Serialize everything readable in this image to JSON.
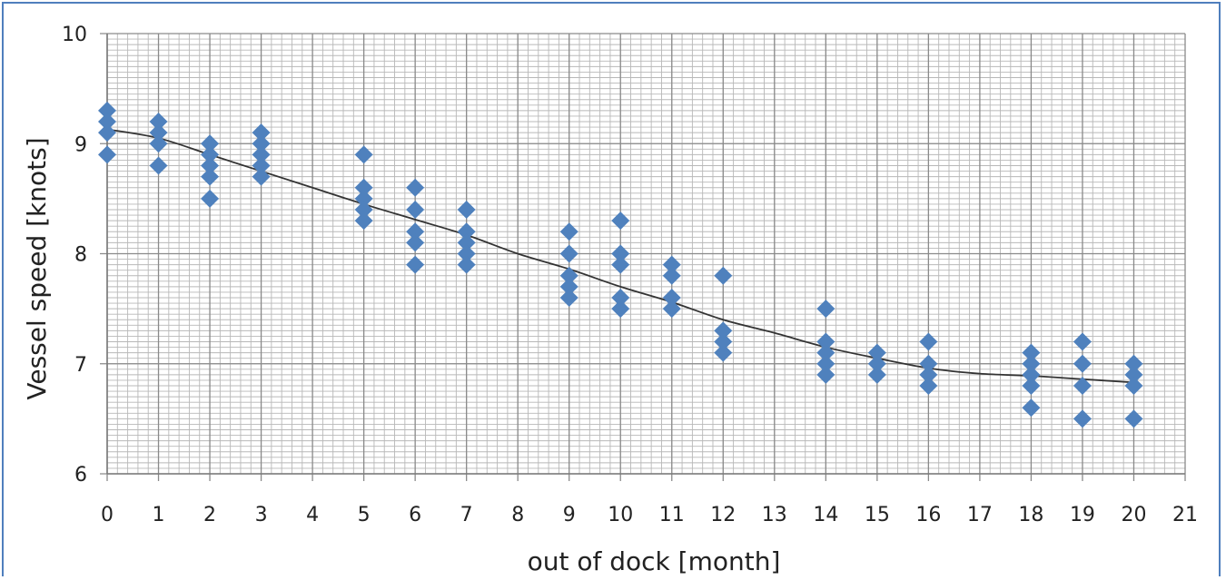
{
  "chart_data": {
    "type": "scatter",
    "xlabel": "out of dock [month]",
    "ylabel": "Vessel speed [knots]",
    "xlim": [
      0,
      21
    ],
    "ylim": [
      6,
      10
    ],
    "x_ticks": [
      0,
      1,
      2,
      3,
      4,
      5,
      6,
      7,
      8,
      9,
      10,
      11,
      12,
      13,
      14,
      15,
      16,
      17,
      18,
      19,
      20,
      21
    ],
    "y_ticks": [
      6,
      7,
      8,
      9,
      10
    ],
    "grid": true,
    "minor_grid": true,
    "marker": "diamond",
    "marker_color": "#4f81bd",
    "points": [
      [
        0,
        9.3
      ],
      [
        0,
        9.2
      ],
      [
        0,
        9.1
      ],
      [
        0,
        8.9
      ],
      [
        1,
        9.2
      ],
      [
        1,
        9.1
      ],
      [
        1,
        9.0
      ],
      [
        1,
        8.8
      ],
      [
        2,
        9.0
      ],
      [
        2,
        8.9
      ],
      [
        2,
        8.8
      ],
      [
        2,
        8.7
      ],
      [
        2,
        8.5
      ],
      [
        3,
        9.1
      ],
      [
        3,
        9.0
      ],
      [
        3,
        8.9
      ],
      [
        3,
        8.8
      ],
      [
        3,
        8.7
      ],
      [
        5,
        8.9
      ],
      [
        5,
        8.6
      ],
      [
        5,
        8.5
      ],
      [
        5,
        8.4
      ],
      [
        5,
        8.3
      ],
      [
        6,
        8.6
      ],
      [
        6,
        8.4
      ],
      [
        6,
        8.2
      ],
      [
        6,
        8.1
      ],
      [
        6,
        7.9
      ],
      [
        7,
        8.4
      ],
      [
        7,
        8.2
      ],
      [
        7,
        8.1
      ],
      [
        7,
        8.0
      ],
      [
        7,
        7.9
      ],
      [
        9,
        8.2
      ],
      [
        9,
        8.0
      ],
      [
        9,
        7.8
      ],
      [
        9,
        7.7
      ],
      [
        9,
        7.6
      ],
      [
        10,
        8.3
      ],
      [
        10,
        8.0
      ],
      [
        10,
        7.9
      ],
      [
        10,
        7.6
      ],
      [
        10,
        7.5
      ],
      [
        11,
        7.9
      ],
      [
        11,
        7.8
      ],
      [
        11,
        7.6
      ],
      [
        11,
        7.5
      ],
      [
        12,
        7.8
      ],
      [
        12,
        7.3
      ],
      [
        12,
        7.2
      ],
      [
        12,
        7.1
      ],
      [
        14,
        7.5
      ],
      [
        14,
        7.2
      ],
      [
        14,
        7.1
      ],
      [
        14,
        7.0
      ],
      [
        14,
        6.9
      ],
      [
        15,
        7.1
      ],
      [
        15,
        7.0
      ],
      [
        15,
        6.9
      ],
      [
        16,
        7.2
      ],
      [
        16,
        7.0
      ],
      [
        16,
        6.9
      ],
      [
        16,
        6.8
      ],
      [
        18,
        7.1
      ],
      [
        18,
        7.0
      ],
      [
        18,
        6.9
      ],
      [
        18,
        6.8
      ],
      [
        18,
        6.6
      ],
      [
        19,
        7.2
      ],
      [
        19,
        7.0
      ],
      [
        19,
        6.8
      ],
      [
        19,
        6.5
      ],
      [
        20,
        7.0
      ],
      [
        20,
        6.9
      ],
      [
        20,
        6.8
      ],
      [
        20,
        6.5
      ]
    ],
    "trend_line": {
      "x": [
        0,
        1,
        2,
        3,
        4,
        5,
        6,
        7,
        8,
        9,
        10,
        11,
        12,
        13,
        14,
        15,
        16,
        17,
        18,
        19,
        20
      ],
      "y": [
        9.13,
        9.05,
        8.9,
        8.75,
        8.6,
        8.45,
        8.31,
        8.17,
        8.0,
        7.86,
        7.7,
        7.56,
        7.4,
        7.28,
        7.15,
        7.05,
        6.96,
        6.91,
        6.89,
        6.86,
        6.83
      ]
    }
  }
}
